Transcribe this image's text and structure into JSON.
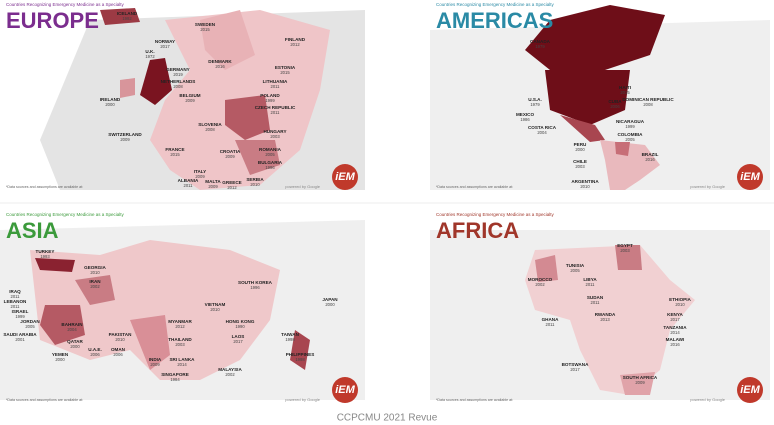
{
  "panels": [
    {
      "subtitle": "Countries Recognizing Emergency Medicine as a Specialty",
      "title": "EUROPE",
      "labels": [
        {
          "name": "ICELAND",
          "year": "1992"
        },
        {
          "name": "SWEDEN",
          "year": "2015"
        },
        {
          "name": "NORWAY",
          "year": "2017"
        },
        {
          "name": "FINLAND",
          "year": "2012"
        },
        {
          "name": "U.K.",
          "year": "1972"
        },
        {
          "name": "DENMARK",
          "year": "2016"
        },
        {
          "name": "GERMANY",
          "year": "2019"
        },
        {
          "name": "ESTONIA",
          "year": "2015"
        },
        {
          "name": "NETHERLANDS",
          "year": "2008"
        },
        {
          "name": "LITHUANIA",
          "year": "2011"
        },
        {
          "name": "BELGIUM",
          "year": "2009"
        },
        {
          "name": "POLAND",
          "year": "1999"
        },
        {
          "name": "IRELAND",
          "year": "2000"
        },
        {
          "name": "CZECH REPUBLIC",
          "year": "2011"
        },
        {
          "name": "SLOVENIA",
          "year": "2008"
        },
        {
          "name": "HUNGARY",
          "year": "2003"
        },
        {
          "name": "SWITZERLAND",
          "year": "2009"
        },
        {
          "name": "ROMANIA",
          "year": "2005"
        },
        {
          "name": "CROATIA",
          "year": "2009"
        },
        {
          "name": "BULGARIA",
          "year": "1996"
        },
        {
          "name": "FRANCE",
          "year": "2015"
        },
        {
          "name": "ITALY",
          "year": "2009"
        },
        {
          "name": "ALBANIA",
          "year": "2011"
        },
        {
          "name": "MALTA",
          "year": "2009"
        },
        {
          "name": "GREECE",
          "year": "2012"
        },
        {
          "name": "SERBIA",
          "year": "2010"
        }
      ],
      "note": "*Data sources and assumptions are available at:",
      "credit": "powered by Google",
      "logo": "iEM"
    },
    {
      "subtitle": "Countries Recognizing Emergency Medicine as a Specialty",
      "title": "AMERICAS",
      "labels": [
        {
          "name": "CANADA",
          "year": "1979"
        },
        {
          "name": "U.S.A.",
          "year": "1979"
        },
        {
          "name": "HAITI",
          "year": "2015"
        },
        {
          "name": "CUBA",
          "year": "2006"
        },
        {
          "name": "DOMINICAN REPUBLIC",
          "year": "2008"
        },
        {
          "name": "MEXICO",
          "year": "1986"
        },
        {
          "name": "NICARAGUA",
          "year": "1999"
        },
        {
          "name": "COSTA RICA",
          "year": "2004"
        },
        {
          "name": "COLOMBIA",
          "year": "2005"
        },
        {
          "name": "PERU",
          "year": "2000"
        },
        {
          "name": "BRAZIL",
          "year": "2016"
        },
        {
          "name": "CHILE",
          "year": "2003"
        },
        {
          "name": "ARGENTINA",
          "year": "2010"
        }
      ],
      "note": "*Data sources and assumptions are available at:",
      "credit": "powered by Google",
      "logo": "iEM"
    },
    {
      "subtitle": "Countries Recognizing Emergency Medicine as a Specialty",
      "title": "ASIA",
      "labels": [
        {
          "name": "TURKEY",
          "year": "1993"
        },
        {
          "name": "GEORGIA",
          "year": "2010"
        },
        {
          "name": "IRAN",
          "year": "2002"
        },
        {
          "name": "IRAQ",
          "year": "2011"
        },
        {
          "name": "LEBANON",
          "year": "2011"
        },
        {
          "name": "ISRAEL",
          "year": "1999"
        },
        {
          "name": "JORDAN",
          "year": "2005"
        },
        {
          "name": "SAUDI ARABIA",
          "year": "2001"
        },
        {
          "name": "BAHRAIN",
          "year": "2004"
        },
        {
          "name": "QATAR",
          "year": "2000"
        },
        {
          "name": "U.A.E.",
          "year": "2006"
        },
        {
          "name": "OMAN",
          "year": "2006"
        },
        {
          "name": "YEMEN",
          "year": "2000"
        },
        {
          "name": "PAKISTAN",
          "year": "2010"
        },
        {
          "name": "INDIA",
          "year": "2009"
        },
        {
          "name": "SRI LANKA",
          "year": "2014"
        },
        {
          "name": "MYANMAR",
          "year": "2012"
        },
        {
          "name": "THAILAND",
          "year": "2003"
        },
        {
          "name": "SINGAPORE",
          "year": "1984"
        },
        {
          "name": "MALAYSIA",
          "year": "2002"
        },
        {
          "name": "VIETNAM",
          "year": "2010"
        },
        {
          "name": "HONG KONG",
          "year": "1990"
        },
        {
          "name": "LAOS",
          "year": "2017"
        },
        {
          "name": "SOUTH KOREA",
          "year": "1996"
        },
        {
          "name": "JAPAN",
          "year": "2000"
        },
        {
          "name": "TAIWAN",
          "year": "1998"
        },
        {
          "name": "PHILIPPINES",
          "year": "1998"
        }
      ],
      "note": "*Data sources and assumptions are available at:",
      "credit": "powered by Google",
      "logo": "iEM"
    },
    {
      "subtitle": "Countries Recognizing Emergency Medicine as a Specialty",
      "title": "AFRICA",
      "labels": [
        {
          "name": "EGYPT",
          "year": "2003"
        },
        {
          "name": "TUNISIA",
          "year": "2005"
        },
        {
          "name": "MOROCCO",
          "year": "2002"
        },
        {
          "name": "LIBYA",
          "year": "2011"
        },
        {
          "name": "SUDAN",
          "year": "2011"
        },
        {
          "name": "ETHIOPIA",
          "year": "2010"
        },
        {
          "name": "RWANDA",
          "year": "2013"
        },
        {
          "name": "KENYA",
          "year": "2017"
        },
        {
          "name": "TANZANIA",
          "year": "2014"
        },
        {
          "name": "MALAWI",
          "year": "2016"
        },
        {
          "name": "GHANA",
          "year": "2011"
        },
        {
          "name": "BOTSWANA",
          "year": "2017"
        },
        {
          "name": "SOUTH AFRICA",
          "year": "2009"
        }
      ],
      "note": "*Data sources and assumptions are available at:",
      "credit": "powered by Google",
      "logo": "iEM"
    }
  ],
  "footer": "CCPCMU 2021 Revue"
}
